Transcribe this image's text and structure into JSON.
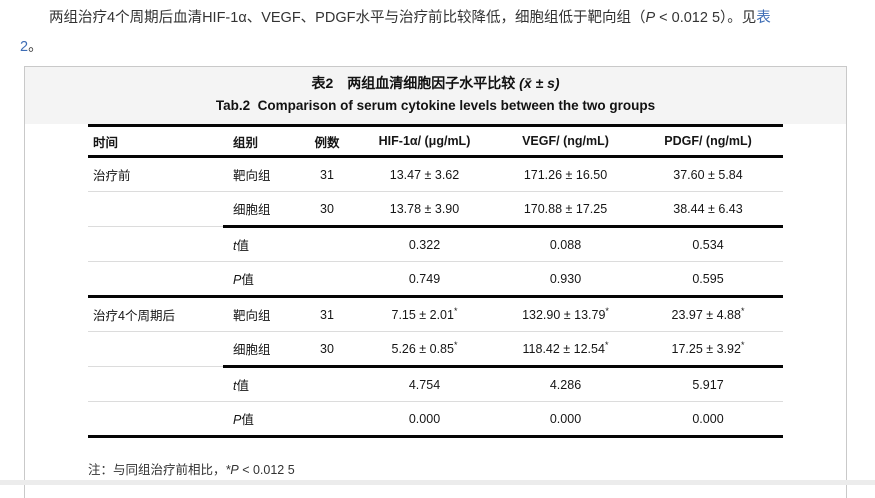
{
  "intro": {
    "text1": "两组治疗4个周期后血清HIF-1α、VEGF、PDGF水平与治疗前比较降低，细胞组低于靶向组（",
    "p_italic": "P",
    "text2": " < 0.012 5）。见",
    "link_line1": "表",
    "link_line2": "2",
    "text3": "。"
  },
  "panel": {
    "title_zh": "表2　两组血清细胞因子水平比较",
    "title_stat": " (x̄ ± s)",
    "title_en": "Tab.2  Comparison of serum cytokine levels between the two groups"
  },
  "table": {
    "columns": [
      "时间",
      "组别",
      "例数",
      "HIF-1α/ (μg/mL)",
      "VEGF/ (ng/mL)",
      "PDGF/ (ng/mL)"
    ],
    "rows": [
      {
        "sep": "thin",
        "cells": [
          "治疗前",
          "靶向组",
          "31",
          "13.47 ± 3.62",
          "171.26 ± 16.50",
          "37.60 ± 5.84"
        ]
      },
      {
        "sep": "partial",
        "cells": [
          "",
          "细胞组",
          "30",
          "13.78 ± 3.90",
          "170.88 ± 17.25",
          "38.44 ± 6.43"
        ]
      },
      {
        "sep": "thin",
        "cells": [
          "",
          "t值",
          "",
          "0.322",
          "0.088",
          "0.534"
        ]
      },
      {
        "sep": "thick",
        "cells": [
          "",
          "P值",
          "",
          "0.749",
          "0.930",
          "0.595"
        ]
      },
      {
        "sep": "thin",
        "cells": [
          "治疗4个周期后",
          "靶向组",
          "31",
          "7.15 ± 2.01*",
          "132.90 ± 13.79*",
          "23.97 ± 4.88*"
        ]
      },
      {
        "sep": "partial",
        "cells": [
          "",
          "细胞组",
          "30",
          "5.26 ± 0.85*",
          "118.42 ± 12.54*",
          "17.25 ± 3.92*"
        ]
      },
      {
        "sep": "thin",
        "cells": [
          "",
          "t值",
          "",
          "4.754",
          "4.286",
          "5.917"
        ]
      },
      {
        "sep": "thick",
        "cells": [
          "",
          "P值",
          "",
          "0.000",
          "0.000",
          "0.000"
        ]
      }
    ]
  },
  "note": {
    "prefix": "注：与同组治疗前相比，",
    "italic": "*P",
    "rest": " < 0.012 5"
  },
  "colors": {
    "link_blue": "#3e6db5",
    "panel_header_bg": "#f4f4f4",
    "panel_border": "#c9c9c9",
    "rule_heavy": "#050505",
    "rule_light": "#dcdcdc"
  }
}
